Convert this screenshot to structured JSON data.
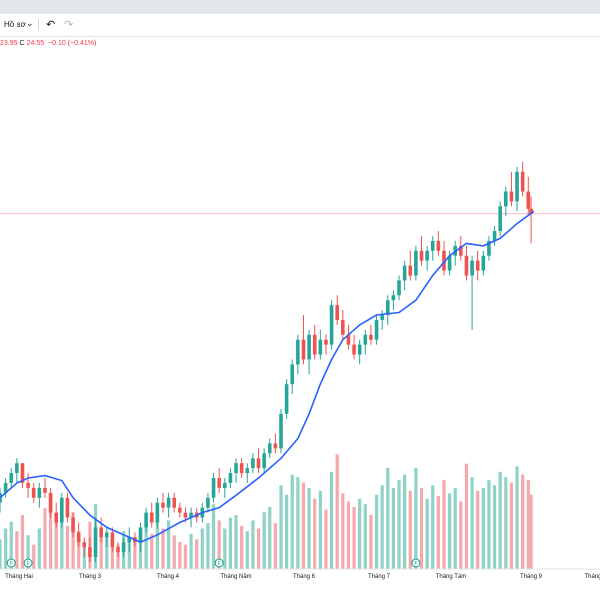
{
  "toolbar": {
    "profile_label": "Hồ sơ",
    "chevron_glyph": "⌄",
    "undo_glyph": "↶",
    "redo_glyph": "↷"
  },
  "legend": {
    "low": "23.95",
    "close_prefix": "C",
    "close": "24.55",
    "change": "−0.10 (−0.41%)"
  },
  "colors": {
    "up": "#26a69a",
    "down": "#ef5350",
    "ma": "#2962ff",
    "vol_up": "#8fd3c6",
    "vol_down": "#f4a9ae",
    "price_line": "#f7b7bd"
  },
  "chart_data": {
    "type": "candlestick",
    "x_tick_labels": [
      "Tháng Hai",
      "Tháng 3",
      "Tháng 4",
      "Tháng Năm",
      "Tháng 6",
      "Tháng 7",
      "Tháng Tám",
      "Tháng 9",
      "Tháng"
    ],
    "moving_average": [
      {
        "t": 0,
        "v": 18.8
      },
      {
        "t": 0.03,
        "v": 19.1
      },
      {
        "t": 0.05,
        "v": 19.2
      },
      {
        "t": 0.08,
        "v": 19.25
      },
      {
        "t": 0.11,
        "v": 19.15
      },
      {
        "t": 0.13,
        "v": 18.8
      },
      {
        "t": 0.16,
        "v": 18.45
      },
      {
        "t": 0.19,
        "v": 18.2
      },
      {
        "t": 0.22,
        "v": 18.05
      },
      {
        "t": 0.25,
        "v": 17.9
      },
      {
        "t": 0.28,
        "v": 18.05
      },
      {
        "t": 0.32,
        "v": 18.3
      },
      {
        "t": 0.36,
        "v": 18.5
      },
      {
        "t": 0.39,
        "v": 18.6
      },
      {
        "t": 0.42,
        "v": 18.85
      },
      {
        "t": 0.46,
        "v": 19.2
      },
      {
        "t": 0.5,
        "v": 19.6
      },
      {
        "t": 0.53,
        "v": 20.0
      },
      {
        "t": 0.55,
        "v": 20.5
      },
      {
        "t": 0.57,
        "v": 21.1
      },
      {
        "t": 0.59,
        "v": 21.6
      },
      {
        "t": 0.61,
        "v": 22.0
      },
      {
        "t": 0.64,
        "v": 22.3
      },
      {
        "t": 0.67,
        "v": 22.5
      },
      {
        "t": 0.71,
        "v": 22.55
      },
      {
        "t": 0.74,
        "v": 22.8
      },
      {
        "t": 0.77,
        "v": 23.3
      },
      {
        "t": 0.8,
        "v": 23.7
      },
      {
        "t": 0.83,
        "v": 23.95
      },
      {
        "t": 0.86,
        "v": 23.9
      },
      {
        "t": 0.89,
        "v": 24.05
      },
      {
        "t": 0.92,
        "v": 24.35
      },
      {
        "t": 0.95,
        "v": 24.6
      }
    ],
    "candles": [
      [
        0.0,
        18.7,
        19.0,
        18.5,
        18.9
      ],
      [
        0.01,
        18.9,
        19.2,
        18.8,
        19.1
      ],
      [
        0.02,
        19.1,
        19.4,
        19.0,
        19.3
      ],
      [
        0.03,
        19.3,
        19.6,
        19.1,
        19.5
      ],
      [
        0.04,
        19.5,
        19.5,
        19.0,
        19.1
      ],
      [
        0.05,
        19.1,
        19.3,
        18.8,
        19.0
      ],
      [
        0.06,
        19.0,
        19.1,
        18.7,
        18.8
      ],
      [
        0.07,
        18.8,
        19.1,
        18.6,
        19.0
      ],
      [
        0.08,
        19.0,
        19.2,
        18.8,
        18.9
      ],
      [
        0.09,
        18.9,
        19.0,
        18.4,
        18.5
      ],
      [
        0.1,
        18.5,
        18.7,
        18.2,
        18.3
      ],
      [
        0.11,
        18.3,
        18.9,
        18.2,
        18.8
      ],
      [
        0.12,
        18.8,
        18.9,
        18.3,
        18.4
      ],
      [
        0.13,
        18.4,
        18.5,
        18.0,
        18.1
      ],
      [
        0.14,
        18.1,
        18.3,
        17.8,
        17.9
      ],
      [
        0.15,
        17.9,
        18.0,
        17.6,
        17.8
      ],
      [
        0.16,
        17.8,
        18.0,
        17.5,
        17.6
      ],
      [
        0.17,
        17.6,
        18.4,
        17.5,
        18.2
      ],
      [
        0.18,
        18.2,
        18.4,
        17.9,
        18.0
      ],
      [
        0.19,
        18.0,
        18.2,
        17.8,
        18.1
      ],
      [
        0.2,
        18.1,
        18.2,
        17.7,
        17.8
      ],
      [
        0.21,
        17.8,
        17.9,
        17.6,
        17.7
      ],
      [
        0.22,
        17.7,
        18.0,
        17.6,
        17.9
      ],
      [
        0.23,
        17.9,
        18.2,
        17.7,
        18.0
      ],
      [
        0.24,
        18.0,
        18.1,
        17.8,
        17.9
      ],
      [
        0.25,
        17.9,
        18.3,
        17.7,
        18.2
      ],
      [
        0.26,
        18.2,
        18.6,
        18.1,
        18.5
      ],
      [
        0.27,
        18.5,
        18.7,
        18.2,
        18.3
      ],
      [
        0.28,
        18.3,
        18.8,
        18.2,
        18.7
      ],
      [
        0.29,
        18.7,
        18.9,
        18.5,
        18.6
      ],
      [
        0.3,
        18.6,
        18.9,
        18.4,
        18.8
      ],
      [
        0.31,
        18.8,
        18.9,
        18.5,
        18.6
      ],
      [
        0.32,
        18.6,
        18.7,
        18.4,
        18.5
      ],
      [
        0.33,
        18.5,
        18.6,
        18.3,
        18.4
      ],
      [
        0.34,
        18.4,
        18.6,
        18.2,
        18.5
      ],
      [
        0.35,
        18.5,
        18.6,
        18.3,
        18.4
      ],
      [
        0.36,
        18.4,
        18.7,
        18.3,
        18.6
      ],
      [
        0.37,
        18.6,
        18.9,
        18.5,
        18.8
      ],
      [
        0.38,
        18.8,
        19.3,
        18.7,
        19.2
      ],
      [
        0.39,
        19.2,
        19.4,
        18.9,
        19.0
      ],
      [
        0.4,
        19.0,
        19.2,
        18.8,
        19.1
      ],
      [
        0.41,
        19.1,
        19.4,
        19.0,
        19.3
      ],
      [
        0.42,
        19.3,
        19.6,
        19.1,
        19.5
      ],
      [
        0.43,
        19.5,
        19.6,
        19.2,
        19.3
      ],
      [
        0.44,
        19.3,
        19.5,
        19.1,
        19.4
      ],
      [
        0.45,
        19.4,
        19.7,
        19.3,
        19.6
      ],
      [
        0.46,
        19.6,
        19.8,
        19.3,
        19.4
      ],
      [
        0.47,
        19.4,
        19.8,
        19.3,
        19.7
      ],
      [
        0.48,
        19.7,
        20.0,
        19.6,
        19.9
      ],
      [
        0.49,
        19.9,
        20.1,
        19.7,
        19.8
      ],
      [
        0.5,
        19.8,
        20.6,
        19.7,
        20.5
      ],
      [
        0.51,
        20.5,
        21.2,
        20.4,
        21.1
      ],
      [
        0.52,
        21.1,
        21.6,
        20.9,
        21.5
      ],
      [
        0.53,
        21.5,
        22.1,
        21.3,
        22.0
      ],
      [
        0.54,
        22.0,
        22.5,
        21.5,
        21.6
      ],
      [
        0.55,
        21.6,
        22.2,
        21.3,
        22.1
      ],
      [
        0.56,
        22.1,
        22.3,
        21.6,
        21.7
      ],
      [
        0.57,
        21.7,
        22.2,
        21.6,
        22.0
      ],
      [
        0.58,
        22.0,
        22.1,
        21.7,
        21.9
      ],
      [
        0.59,
        21.9,
        22.8,
        21.8,
        22.7
      ],
      [
        0.6,
        22.7,
        22.9,
        22.3,
        22.4
      ],
      [
        0.61,
        22.4,
        22.6,
        22.0,
        22.1
      ],
      [
        0.62,
        22.1,
        22.3,
        21.8,
        21.9
      ],
      [
        0.63,
        21.9,
        22.1,
        21.6,
        21.7
      ],
      [
        0.64,
        21.7,
        22.0,
        21.5,
        21.9
      ],
      [
        0.65,
        21.9,
        22.2,
        21.7,
        22.1
      ],
      [
        0.66,
        22.1,
        22.3,
        21.9,
        22.0
      ],
      [
        0.67,
        22.0,
        22.5,
        21.9,
        22.4
      ],
      [
        0.68,
        22.4,
        22.6,
        22.2,
        22.5
      ],
      [
        0.69,
        22.5,
        22.9,
        22.3,
        22.8
      ],
      [
        0.7,
        22.8,
        23.0,
        22.6,
        22.9
      ],
      [
        0.71,
        22.9,
        23.3,
        22.8,
        23.2
      ],
      [
        0.72,
        23.2,
        23.6,
        23.0,
        23.5
      ],
      [
        0.73,
        23.5,
        23.8,
        23.2,
        23.3
      ],
      [
        0.74,
        23.3,
        23.9,
        23.2,
        23.8
      ],
      [
        0.75,
        23.8,
        24.1,
        23.5,
        23.6
      ],
      [
        0.76,
        23.6,
        23.9,
        23.4,
        23.8
      ],
      [
        0.77,
        23.8,
        24.1,
        23.6,
        24.0
      ],
      [
        0.78,
        24.0,
        24.2,
        23.7,
        23.8
      ],
      [
        0.79,
        23.8,
        24.0,
        23.3,
        23.4
      ],
      [
        0.8,
        23.4,
        23.8,
        23.3,
        23.7
      ],
      [
        0.81,
        23.7,
        24.0,
        23.5,
        23.9
      ],
      [
        0.82,
        23.9,
        24.1,
        23.6,
        23.7
      ],
      [
        0.83,
        23.7,
        23.9,
        23.2,
        23.3
      ],
      [
        0.84,
        23.3,
        23.7,
        22.2,
        23.6
      ],
      [
        0.85,
        23.6,
        23.8,
        23.2,
        23.4
      ],
      [
        0.86,
        23.4,
        23.8,
        23.3,
        23.7
      ],
      [
        0.87,
        23.7,
        24.1,
        23.6,
        24.0
      ],
      [
        0.88,
        24.0,
        24.3,
        23.9,
        24.2
      ],
      [
        0.89,
        24.2,
        24.8,
        24.1,
        24.7
      ],
      [
        0.9,
        24.7,
        25.1,
        24.5,
        25.0
      ],
      [
        0.91,
        25.0,
        25.4,
        24.7,
        24.8
      ],
      [
        0.92,
        24.8,
        25.5,
        24.6,
        25.4
      ],
      [
        0.93,
        25.4,
        25.6,
        24.9,
        25.0
      ],
      [
        0.94,
        25.0,
        25.3,
        24.5,
        24.65
      ],
      [
        0.945,
        24.65,
        24.9,
        23.95,
        24.55
      ]
    ],
    "volume": [
      [
        0.0,
        0.22,
        1
      ],
      [
        0.01,
        0.3,
        1
      ],
      [
        0.02,
        0.35,
        1
      ],
      [
        0.03,
        0.28,
        0
      ],
      [
        0.04,
        0.4,
        0
      ],
      [
        0.05,
        0.25,
        1
      ],
      [
        0.06,
        0.18,
        0
      ],
      [
        0.07,
        0.3,
        1
      ],
      [
        0.08,
        0.45,
        0
      ],
      [
        0.09,
        0.55,
        0
      ],
      [
        0.1,
        0.38,
        0
      ],
      [
        0.11,
        0.5,
        1
      ],
      [
        0.12,
        0.32,
        0
      ],
      [
        0.13,
        0.42,
        0
      ],
      [
        0.14,
        0.28,
        0
      ],
      [
        0.15,
        0.2,
        1
      ],
      [
        0.16,
        0.35,
        0
      ],
      [
        0.17,
        0.48,
        1
      ],
      [
        0.18,
        0.3,
        0
      ],
      [
        0.19,
        0.25,
        1
      ],
      [
        0.2,
        0.22,
        0
      ],
      [
        0.21,
        0.18,
        0
      ],
      [
        0.22,
        0.28,
        1
      ],
      [
        0.23,
        0.24,
        1
      ],
      [
        0.24,
        0.2,
        0
      ],
      [
        0.25,
        0.3,
        1
      ],
      [
        0.26,
        0.38,
        1
      ],
      [
        0.27,
        0.26,
        0
      ],
      [
        0.28,
        0.42,
        1
      ],
      [
        0.29,
        0.3,
        0
      ],
      [
        0.3,
        0.36,
        1
      ],
      [
        0.31,
        0.25,
        0
      ],
      [
        0.32,
        0.2,
        0
      ],
      [
        0.33,
        0.18,
        0
      ],
      [
        0.34,
        0.26,
        1
      ],
      [
        0.35,
        0.22,
        0
      ],
      [
        0.36,
        0.3,
        1
      ],
      [
        0.37,
        0.34,
        1
      ],
      [
        0.38,
        0.48,
        1
      ],
      [
        0.39,
        0.36,
        0
      ],
      [
        0.4,
        0.3,
        1
      ],
      [
        0.41,
        0.38,
        1
      ],
      [
        0.42,
        0.4,
        1
      ],
      [
        0.43,
        0.32,
        0
      ],
      [
        0.44,
        0.28,
        1
      ],
      [
        0.45,
        0.36,
        1
      ],
      [
        0.46,
        0.3,
        0
      ],
      [
        0.47,
        0.42,
        1
      ],
      [
        0.48,
        0.46,
        1
      ],
      [
        0.49,
        0.34,
        0
      ],
      [
        0.5,
        0.62,
        1
      ],
      [
        0.51,
        0.55,
        1
      ],
      [
        0.52,
        0.7,
        1
      ],
      [
        0.53,
        0.68,
        1
      ],
      [
        0.54,
        0.64,
        0
      ],
      [
        0.55,
        0.6,
        1
      ],
      [
        0.56,
        0.52,
        0
      ],
      [
        0.57,
        0.58,
        1
      ],
      [
        0.58,
        0.44,
        0
      ],
      [
        0.59,
        0.72,
        1
      ],
      [
        0.6,
        0.85,
        0
      ],
      [
        0.61,
        0.56,
        0
      ],
      [
        0.62,
        0.5,
        0
      ],
      [
        0.63,
        0.46,
        0
      ],
      [
        0.64,
        0.52,
        1
      ],
      [
        0.65,
        0.48,
        1
      ],
      [
        0.66,
        0.4,
        0
      ],
      [
        0.67,
        0.55,
        1
      ],
      [
        0.68,
        0.62,
        1
      ],
      [
        0.69,
        0.75,
        1
      ],
      [
        0.7,
        0.6,
        1
      ],
      [
        0.71,
        0.66,
        1
      ],
      [
        0.72,
        0.7,
        1
      ],
      [
        0.73,
        0.58,
        0
      ],
      [
        0.74,
        0.75,
        1
      ],
      [
        0.75,
        0.6,
        0
      ],
      [
        0.76,
        0.52,
        1
      ],
      [
        0.77,
        0.62,
        1
      ],
      [
        0.78,
        0.54,
        0
      ],
      [
        0.79,
        0.66,
        0
      ],
      [
        0.8,
        0.56,
        1
      ],
      [
        0.81,
        0.6,
        1
      ],
      [
        0.82,
        0.5,
        0
      ],
      [
        0.83,
        0.78,
        0
      ],
      [
        0.84,
        0.68,
        1
      ],
      [
        0.85,
        0.58,
        0
      ],
      [
        0.86,
        0.6,
        1
      ],
      [
        0.87,
        0.66,
        1
      ],
      [
        0.88,
        0.62,
        1
      ],
      [
        0.89,
        0.72,
        1
      ],
      [
        0.9,
        0.68,
        1
      ],
      [
        0.91,
        0.64,
        0
      ],
      [
        0.92,
        0.76,
        1
      ],
      [
        0.93,
        0.7,
        0
      ],
      [
        0.94,
        0.66,
        0
      ],
      [
        0.945,
        0.55,
        0
      ]
    ],
    "event_markers": [
      {
        "label": "F",
        "t": 0.02
      },
      {
        "label": "F",
        "t": 0.05
      },
      {
        "label": "F",
        "t": 0.39
      },
      {
        "label": "F",
        "t": 0.74
      }
    ],
    "current_price": 24.55
  }
}
